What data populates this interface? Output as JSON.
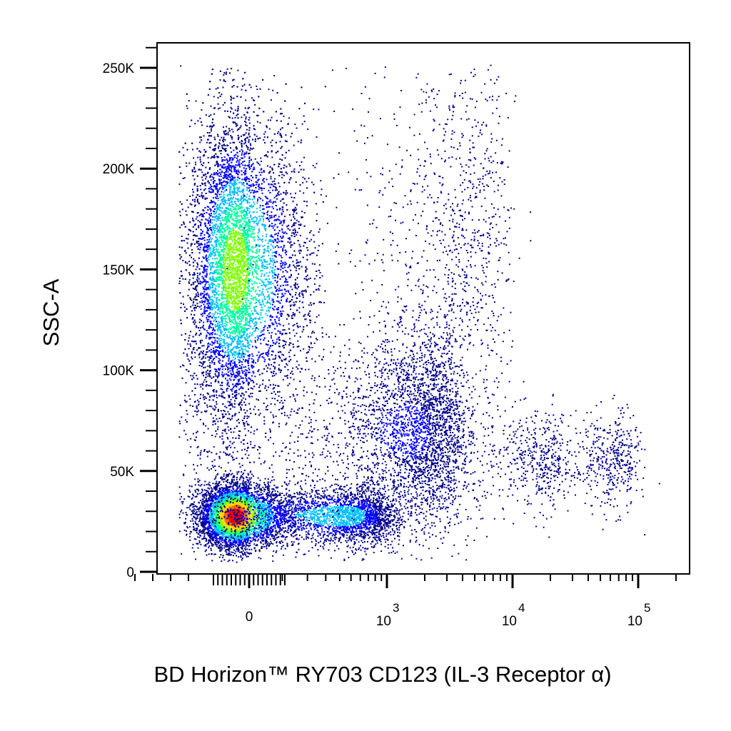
{
  "chart_data": {
    "type": "scatter",
    "subtype": "flow-cytometry-density-dot-plot",
    "xlabel": "BD Horizon™ RY703 CD123 (IL-3 Receptor α)",
    "ylabel": "SSC-A",
    "x_scale": "biexponential",
    "y_scale": "linear",
    "ylim": [
      0,
      262144
    ],
    "xlim": [
      -400,
      260000
    ],
    "grid": false,
    "legend": "none",
    "y_ticks": [
      {
        "value": 0,
        "label": "0"
      },
      {
        "value": 50000,
        "label": "50K"
      },
      {
        "value": 100000,
        "label": "100K"
      },
      {
        "value": 150000,
        "label": "150K"
      },
      {
        "value": 200000,
        "label": "200K"
      },
      {
        "value": 250000,
        "label": "250K"
      }
    ],
    "x_ticks": [
      {
        "value": 0,
        "label": "0"
      },
      {
        "value": 1000,
        "base": "10",
        "exp": "3"
      },
      {
        "value": 10000,
        "base": "10",
        "exp": "4"
      },
      {
        "value": 100000,
        "base": "10",
        "exp": "5"
      }
    ],
    "colormap": [
      "#00008b",
      "#0000ff",
      "#00bfff",
      "#00ff9f",
      "#7fff00",
      "#ffd700",
      "#ff6a00",
      "#ff0000"
    ],
    "populations": [
      {
        "x_center": -80,
        "y_center": 150000,
        "x_spread": 130,
        "y_spread": 38000,
        "count": 9000,
        "peak_density": 0.6
      },
      {
        "x_center": -80,
        "y_center": 28000,
        "x_spread": 100,
        "y_spread": 8000,
        "count": 5000,
        "peak_density": 1.0
      },
      {
        "x_center": 400,
        "y_center": 28000,
        "x_spread": 350,
        "y_spread": 7000,
        "count": 2600,
        "peak_density": 0.35
      },
      {
        "x_center": 1500,
        "y_center": 70000,
        "x_spread": 1200,
        "y_spread": 25000,
        "count": 3500,
        "peak_density": 0.15
      },
      {
        "x_center": 15000,
        "y_center": 55000,
        "x_spread": 7000,
        "y_spread": 12000,
        "count": 500,
        "peak_density": 0.12
      },
      {
        "x_center": 60000,
        "y_center": 55000,
        "x_spread": 20000,
        "y_spread": 12000,
        "count": 450,
        "peak_density": 0.12
      },
      {
        "x_center": 3000,
        "y_center": 160000,
        "x_spread": 3000,
        "y_spread": 55000,
        "count": 1400,
        "peak_density": 0.05
      }
    ]
  }
}
